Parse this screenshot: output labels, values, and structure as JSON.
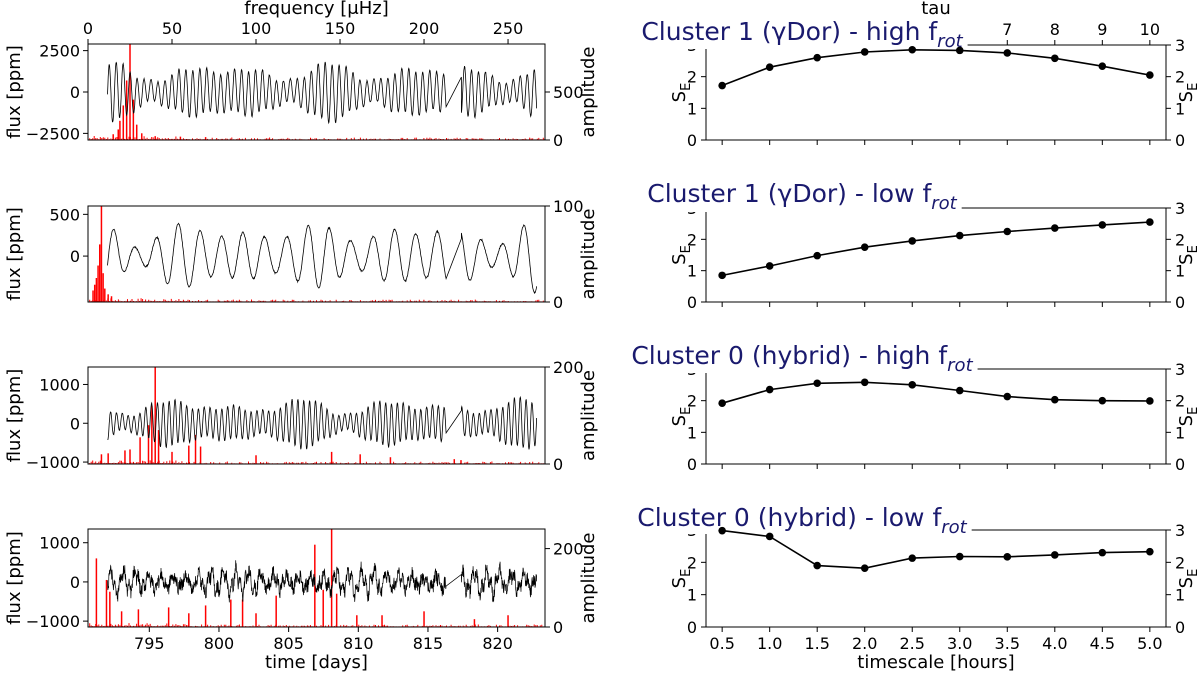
{
  "figure": {
    "left_column": {
      "top_axis_label": "frequency [μHz]",
      "top_axis_ticks": [
        0,
        50,
        100,
        150,
        200,
        250
      ],
      "top_axis_range": [
        0,
        272
      ],
      "bottom_axis_label": "time [days]",
      "bottom_axis_ticks": [
        795,
        800,
        805,
        810,
        815,
        820
      ],
      "time_range": [
        790.6,
        823.4
      ],
      "data_time_range": [
        792.0,
        822.8
      ],
      "gap_range": [
        816.3,
        817.4
      ],
      "left_ylabel": "flux [ppm]",
      "right_ylabel": "amplitude"
    },
    "right_column": {
      "top_axis_label": "tau",
      "top_axis_ticks": [
        7,
        8,
        9,
        10
      ],
      "bottom_axis_label": "timescale [hours]",
      "bottom_axis_ticks": [
        "0.5",
        "1.0",
        "1.5",
        "2.0",
        "2.5",
        "3.0",
        "3.5",
        "4.0",
        "4.5",
        "5.0"
      ],
      "ylabel": "S_E",
      "ylabel_main": "S",
      "ylabel_sub": "E",
      "yticks": [
        0,
        1,
        2,
        3
      ],
      "ylim": [
        0,
        3
      ]
    }
  },
  "chart_data": [
    {
      "type": "line",
      "panel": "light-curve-1",
      "series_color": "#000000",
      "periodogram_color": "#ff0000",
      "flux_ticks": [
        "2500",
        "0",
        "−2500"
      ],
      "flux_tick_values": [
        2500,
        0,
        -2500
      ],
      "flux_ylim": [
        -2900,
        2900
      ],
      "amp_ticks": [
        "500",
        "0"
      ],
      "amp_tick_values": [
        500,
        0
      ],
      "amp_ylim": [
        0,
        1000
      ],
      "flux_amplitude": 1800,
      "period_days": 0.5,
      "style": "smooth",
      "periodogram_peaks": [
        [
          25,
          1000
        ],
        [
          23,
          620
        ],
        [
          21,
          360
        ],
        [
          19,
          200
        ],
        [
          27,
          420
        ],
        [
          29,
          160
        ],
        [
          18,
          110
        ],
        [
          15,
          60
        ],
        [
          32,
          70
        ],
        [
          40,
          40
        ],
        [
          55,
          35
        ],
        [
          70,
          30
        ]
      ]
    },
    {
      "type": "line",
      "panel": "light-curve-2",
      "series_color": "#000000",
      "periodogram_color": "#ff0000",
      "flux_ticks": [
        "500",
        "0"
      ],
      "flux_tick_values": [
        500,
        0
      ],
      "flux_ylim": [
        -550,
        600
      ],
      "amp_ticks": [
        "100",
        "0"
      ],
      "amp_tick_values": [
        100,
        0
      ],
      "amp_ylim": [
        0,
        100
      ],
      "flux_amplitude": 420,
      "period_days": 1.55,
      "style": "smooth",
      "periodogram_peaks": [
        [
          8,
          100
        ],
        [
          7,
          60
        ],
        [
          6,
          38
        ],
        [
          9,
          30
        ],
        [
          5,
          25
        ],
        [
          4,
          18
        ],
        [
          10,
          14
        ],
        [
          3,
          12
        ],
        [
          12,
          8
        ],
        [
          14,
          6
        ]
      ]
    },
    {
      "type": "line",
      "panel": "light-curve-3",
      "series_color": "#000000",
      "periodogram_color": "#ff0000",
      "flux_ticks": [
        "1000",
        "0",
        "−1000"
      ],
      "flux_tick_values": [
        1000,
        0,
        -1000
      ],
      "flux_ylim": [
        -1050,
        1450
      ],
      "amp_ticks": [
        "200",
        "0"
      ],
      "amp_tick_values": [
        200,
        0
      ],
      "amp_ylim": [
        0,
        200
      ],
      "flux_amplitude": 650,
      "period_days": 0.42,
      "style": "smooth",
      "periodogram_peaks": [
        [
          40,
          200
        ],
        [
          38,
          120
        ],
        [
          36,
          80
        ],
        [
          42,
          70
        ],
        [
          31,
          55
        ],
        [
          64,
          60
        ],
        [
          60,
          38
        ],
        [
          67,
          36
        ],
        [
          25,
          30
        ],
        [
          22,
          28
        ],
        [
          12,
          22
        ],
        [
          8,
          20
        ],
        [
          50,
          25
        ],
        [
          100,
          18
        ],
        [
          145,
          25
        ],
        [
          162,
          20
        ],
        [
          180,
          14
        ],
        [
          218,
          10
        ],
        [
          222,
          8
        ]
      ]
    },
    {
      "type": "line",
      "panel": "light-curve-4",
      "series_color": "#000000",
      "periodogram_color": "#ff0000",
      "flux_ticks": [
        "1000",
        "0",
        "−1000"
      ],
      "flux_tick_values": [
        1000,
        0,
        -1000
      ],
      "flux_ylim": [
        -1150,
        1350
      ],
      "amp_ticks": [
        "200",
        "0"
      ],
      "amp_tick_values": [
        200,
        0
      ],
      "amp_ylim": [
        0,
        250
      ],
      "flux_amplitude": 380,
      "period_days": 0.9,
      "style": "noisy",
      "periodogram_peaks": [
        [
          145,
          250
        ],
        [
          135,
          210
        ],
        [
          5,
          175
        ],
        [
          11,
          120
        ],
        [
          13,
          90
        ],
        [
          140,
          95
        ],
        [
          148,
          85
        ],
        [
          112,
          80
        ],
        [
          85,
          70
        ],
        [
          92,
          70
        ],
        [
          70,
          55
        ],
        [
          48,
          50
        ],
        [
          30,
          45
        ],
        [
          200,
          40
        ],
        [
          250,
          30
        ],
        [
          175,
          30
        ],
        [
          20,
          40
        ],
        [
          60,
          35
        ],
        [
          100,
          35
        ],
        [
          160,
          30
        ],
        [
          230,
          20
        ]
      ]
    },
    {
      "type": "line",
      "panel": "entropy-1",
      "title": "Cluster 1 (γDor) - high f",
      "title_sub": "rot",
      "x": [
        0.5,
        1.0,
        1.5,
        2.0,
        2.5,
        3.0,
        3.5,
        4.0,
        4.5,
        5.0
      ],
      "y": [
        1.72,
        2.3,
        2.6,
        2.78,
        2.85,
        2.83,
        2.75,
        2.58,
        2.33,
        2.05
      ],
      "ylim": [
        0,
        3
      ],
      "xlim": [
        0.33,
        5.17
      ]
    },
    {
      "type": "line",
      "panel": "entropy-2",
      "title": "Cluster 1 (γDor) - low f",
      "title_sub": "rot",
      "x": [
        0.5,
        1.0,
        1.5,
        2.0,
        2.5,
        3.0,
        3.5,
        4.0,
        4.5,
        5.0
      ],
      "y": [
        0.85,
        1.15,
        1.48,
        1.75,
        1.95,
        2.12,
        2.25,
        2.36,
        2.46,
        2.55
      ],
      "ylim": [
        0,
        3
      ],
      "xlim": [
        0.33,
        5.17
      ]
    },
    {
      "type": "line",
      "panel": "entropy-3",
      "title": "Cluster 0 (hybrid) - high f",
      "title_sub": "rot",
      "x": [
        0.5,
        1.0,
        1.5,
        2.0,
        2.5,
        3.0,
        3.5,
        4.0,
        4.5,
        5.0
      ],
      "y": [
        1.92,
        2.35,
        2.55,
        2.58,
        2.5,
        2.32,
        2.13,
        2.03,
        2.0,
        1.99
      ],
      "ylim": [
        0,
        3
      ],
      "xlim": [
        0.33,
        5.17
      ]
    },
    {
      "type": "line",
      "panel": "entropy-4",
      "title": "Cluster 0 (hybrid) - low f",
      "title_sub": "rot",
      "x": [
        0.5,
        1.0,
        1.5,
        2.0,
        2.5,
        3.0,
        3.5,
        4.0,
        4.5,
        5.0
      ],
      "y": [
        2.98,
        2.8,
        1.9,
        1.82,
        2.13,
        2.18,
        2.17,
        2.23,
        2.3,
        2.33
      ],
      "ylim": [
        0,
        3
      ],
      "xlim": [
        0.33,
        5.17
      ]
    }
  ]
}
